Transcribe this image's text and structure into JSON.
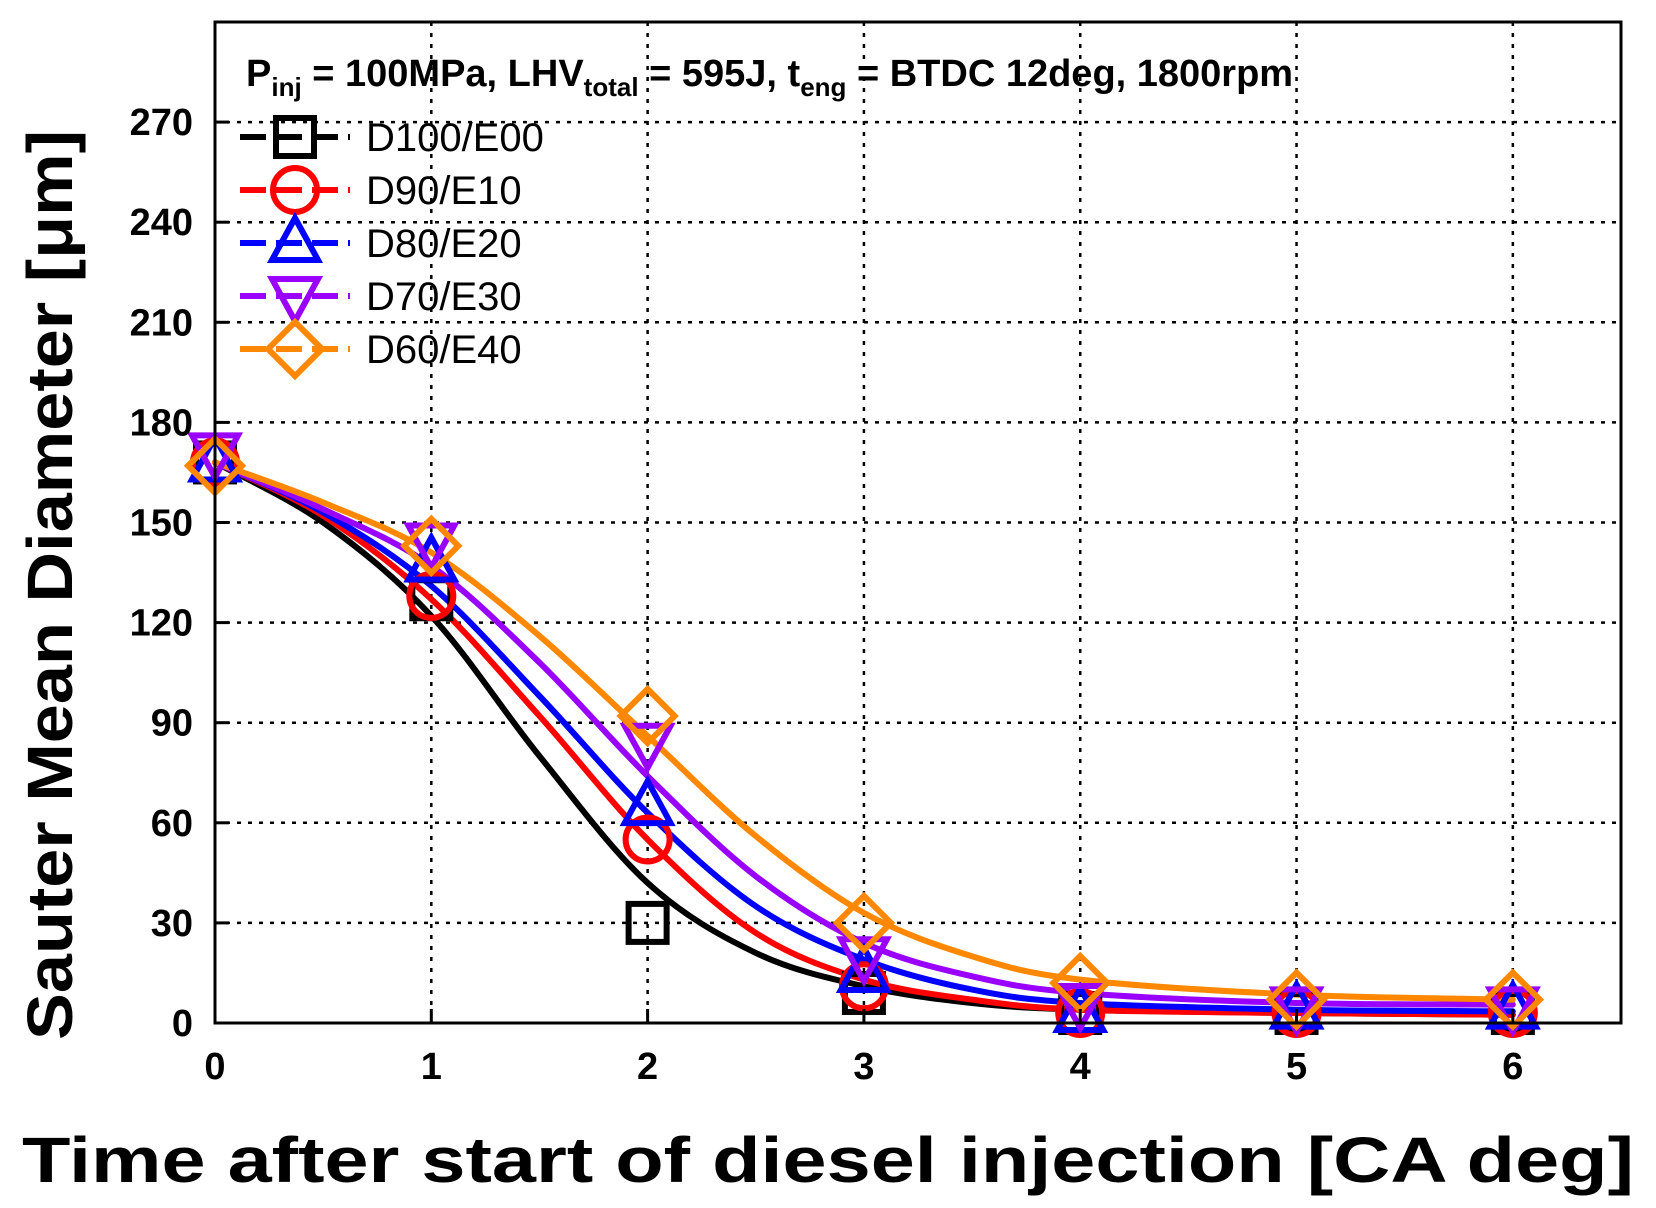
{
  "chart_data": {
    "type": "line",
    "title": "",
    "annotation": {
      "p_main": "P",
      "p_sub": "inj",
      "p_rest": " = 100MPa, LHV",
      "lhv_sub": "total",
      "lhv_rest": " = 595J, t",
      "t_sub": "eng",
      "t_rest": " = BTDC 12deg, 1800rpm"
    },
    "xlabel": "Time after start of diesel injection [CA deg]",
    "ylabel": "Sauter Mean Diameter [μm]",
    "xlim": [
      0,
      6.5
    ],
    "ylim": [
      0,
      300
    ],
    "xticks": [
      0,
      1,
      2,
      3,
      4,
      5,
      6
    ],
    "yticks": [
      0,
      30,
      60,
      90,
      120,
      150,
      180,
      210,
      240,
      270
    ],
    "grid": true,
    "legend_position": "top-left",
    "series": [
      {
        "name": "D100/E00",
        "color": "#000000",
        "marker": "square",
        "points": [
          [
            0,
            168
          ],
          [
            1,
            127
          ],
          [
            2,
            30
          ],
          [
            3,
            9
          ],
          [
            4,
            3
          ],
          [
            5,
            3
          ],
          [
            6,
            3
          ]
        ],
        "fit": [
          [
            0,
            168
          ],
          [
            0.5,
            150
          ],
          [
            1,
            122
          ],
          [
            1.5,
            80
          ],
          [
            2,
            42
          ],
          [
            2.5,
            21
          ],
          [
            3,
            11
          ],
          [
            3.5,
            6
          ],
          [
            4,
            4
          ],
          [
            5,
            3
          ],
          [
            6,
            2.5
          ]
        ]
      },
      {
        "name": "D90/E10",
        "color": "#ff0000",
        "marker": "circle",
        "points": [
          [
            0,
            168
          ],
          [
            1,
            128
          ],
          [
            2,
            55
          ],
          [
            3,
            11
          ],
          [
            4,
            3
          ],
          [
            5,
            3
          ],
          [
            6,
            3
          ]
        ],
        "fit": [
          [
            0,
            168
          ],
          [
            0.5,
            152
          ],
          [
            1,
            127
          ],
          [
            1.5,
            92
          ],
          [
            2,
            55
          ],
          [
            2.5,
            27
          ],
          [
            3,
            13
          ],
          [
            3.5,
            7
          ],
          [
            4,
            4
          ],
          [
            5,
            3
          ],
          [
            6,
            2.5
          ]
        ]
      },
      {
        "name": "D80/E20",
        "color": "#0000ff",
        "marker": "triangle-up",
        "points": [
          [
            0,
            168
          ],
          [
            1,
            138
          ],
          [
            2,
            65
          ],
          [
            3,
            15
          ],
          [
            4,
            3
          ],
          [
            5,
            4
          ],
          [
            6,
            4
          ]
        ],
        "fit": [
          [
            0,
            168
          ],
          [
            0.5,
            153
          ],
          [
            1,
            131
          ],
          [
            1.5,
            98
          ],
          [
            2,
            63
          ],
          [
            2.5,
            35
          ],
          [
            3,
            19
          ],
          [
            3.5,
            10
          ],
          [
            4,
            6
          ],
          [
            5,
            4
          ],
          [
            6,
            3.5
          ]
        ]
      },
      {
        "name": "D70/E30",
        "color": "#9900ff",
        "marker": "triangle-down",
        "points": [
          [
            0,
            171
          ],
          [
            1,
            144
          ],
          [
            2,
            84
          ],
          [
            3,
            20
          ],
          [
            4,
            6
          ],
          [
            5,
            5
          ],
          [
            6,
            5
          ]
        ],
        "fit": [
          [
            0,
            168
          ],
          [
            0.5,
            154
          ],
          [
            1,
            137
          ],
          [
            1.5,
            108
          ],
          [
            2,
            74
          ],
          [
            2.5,
            44
          ],
          [
            3,
            24
          ],
          [
            3.5,
            14
          ],
          [
            4,
            9
          ],
          [
            5,
            6
          ],
          [
            6,
            5.5
          ]
        ]
      },
      {
        "name": "D60/E40",
        "color": "#ff8800",
        "marker": "diamond",
        "points": [
          [
            0,
            167
          ],
          [
            1,
            143
          ],
          [
            2,
            92
          ],
          [
            3,
            30
          ],
          [
            4,
            12
          ],
          [
            5,
            7
          ],
          [
            6,
            7
          ]
        ],
        "fit": [
          [
            0,
            168
          ],
          [
            0.5,
            156
          ],
          [
            1,
            141
          ],
          [
            1.5,
            116
          ],
          [
            2,
            86
          ],
          [
            2.5,
            56
          ],
          [
            3,
            33
          ],
          [
            3.5,
            20
          ],
          [
            4,
            13
          ],
          [
            5,
            8.5
          ],
          [
            6,
            7
          ]
        ]
      }
    ]
  }
}
